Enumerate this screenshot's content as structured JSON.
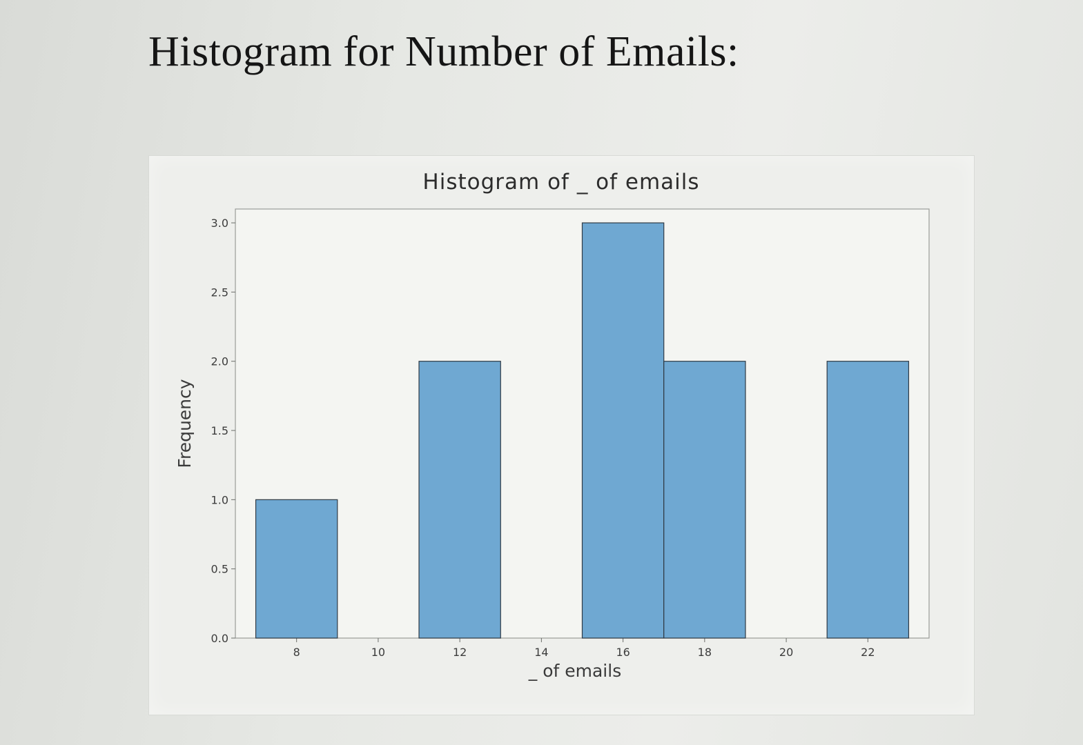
{
  "page": {
    "heading": "Histogram for Number of Emails:"
  },
  "chart_data": {
    "type": "bar",
    "title": "Histogram of _ of emails",
    "xlabel": "_ of emails",
    "ylabel": "Frequency",
    "bins": [
      {
        "start": 7,
        "end": 9,
        "count": 1
      },
      {
        "start": 11,
        "end": 13,
        "count": 2
      },
      {
        "start": 15,
        "end": 17,
        "count": 3
      },
      {
        "start": 17,
        "end": 19,
        "count": 2
      },
      {
        "start": 21,
        "end": 23,
        "count": 2
      }
    ],
    "x_ticks": [
      8,
      10,
      12,
      14,
      16,
      18,
      20,
      22
    ],
    "y_ticks": [
      "0.0",
      "0.5",
      "1.0",
      "1.5",
      "2.0",
      "2.5",
      "3.0"
    ],
    "xlim": [
      6.5,
      23.5
    ],
    "ylim": [
      0,
      3.1
    ],
    "grid": false,
    "bar_color": "#6fa8d2"
  }
}
